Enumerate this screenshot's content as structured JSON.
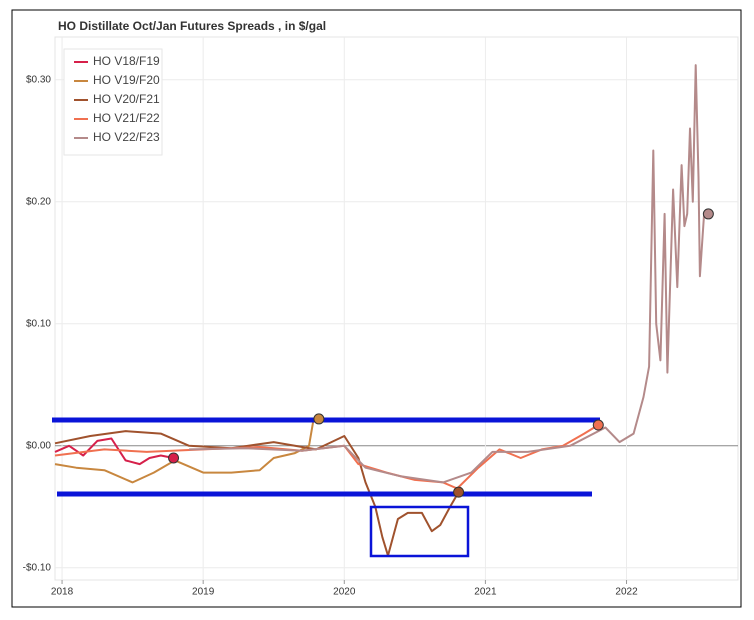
{
  "chart_data": {
    "type": "line",
    "title": "HO Distillate Oct/Jan Futures Spreads , in $/gal",
    "xlim": [
      2017.95,
      2022.79
    ],
    "xticks": [
      2018,
      2019,
      2020,
      2021,
      2022
    ],
    "ylim": [
      -0.11,
      0.335
    ],
    "yticks": [
      {
        "value": -0.1,
        "label": "-$0.10"
      },
      {
        "value": 0,
        "label": "$0.00"
      },
      {
        "value": 0.1,
        "label": "$0.10"
      },
      {
        "value": 0.2,
        "label": "$0.20"
      },
      {
        "value": 0.3,
        "label": "$0.30"
      }
    ],
    "grid": true,
    "legend": "top-left",
    "series": [
      {
        "name": "HO V18/F19",
        "color": "#d6204a",
        "x": [
          2017.95,
          2018.05,
          2018.15,
          2018.25,
          2018.35,
          2018.45,
          2018.55,
          2018.62,
          2018.7,
          2018.79
        ],
        "values": [
          -0.005,
          0.0,
          -0.008,
          0.004,
          0.006,
          -0.012,
          -0.015,
          -0.01,
          -0.008,
          -0.01
        ]
      },
      {
        "name": "HO V19/F20",
        "color": "#c8873f",
        "x": [
          2017.95,
          2018.1,
          2018.3,
          2018.5,
          2018.65,
          2018.8,
          2019.0,
          2019.2,
          2019.4,
          2019.5,
          2019.65,
          2019.75,
          2019.78,
          2019.82
        ],
        "values": [
          -0.015,
          -0.018,
          -0.02,
          -0.03,
          -0.022,
          -0.012,
          -0.022,
          -0.022,
          -0.02,
          -0.01,
          -0.006,
          0.0,
          0.02,
          0.022
        ]
      },
      {
        "name": "HO V20/F21",
        "color": "#a0522d",
        "x": [
          2017.95,
          2018.2,
          2018.45,
          2018.7,
          2018.9,
          2019.2,
          2019.5,
          2019.8,
          2020.0,
          2020.1,
          2020.15,
          2020.22,
          2020.27,
          2020.31,
          2020.38,
          2020.45,
          2020.55,
          2020.62,
          2020.68,
          2020.75,
          2020.81
        ],
        "values": [
          0.002,
          0.008,
          0.012,
          0.01,
          0.0,
          -0.002,
          0.003,
          -0.003,
          0.008,
          -0.01,
          -0.03,
          -0.05,
          -0.075,
          -0.09,
          -0.06,
          -0.055,
          -0.055,
          -0.07,
          -0.065,
          -0.05,
          -0.038
        ]
      },
      {
        "name": "HO V21/F22",
        "color": "#f07050",
        "x": [
          2017.95,
          2018.3,
          2018.6,
          2019.0,
          2019.4,
          2019.7,
          2020.0,
          2020.1,
          2020.3,
          2020.5,
          2020.7,
          2020.8,
          2020.95,
          2021.1,
          2021.25,
          2021.4,
          2021.55,
          2021.7,
          2021.8
        ],
        "values": [
          -0.008,
          -0.003,
          -0.005,
          -0.003,
          -0.001,
          -0.004,
          0.0,
          -0.015,
          -0.022,
          -0.028,
          -0.03,
          -0.035,
          -0.018,
          -0.003,
          -0.01,
          -0.003,
          0.0,
          0.01,
          0.017
        ]
      },
      {
        "name": "HO V22/F23",
        "color": "#b48a8a",
        "x": [
          2018.9,
          2019.3,
          2019.7,
          2020.0,
          2020.15,
          2020.4,
          2020.7,
          2020.9,
          2021.05,
          2021.3,
          2021.6,
          2021.85,
          2021.95,
          2022.05,
          2022.12,
          2022.16,
          2022.19,
          2022.21,
          2022.24,
          2022.27,
          2022.29,
          2022.33,
          2022.36,
          2022.39,
          2022.41,
          2022.43,
          2022.45,
          2022.47,
          2022.49,
          2022.51,
          2022.52,
          2022.55,
          2022.58
        ],
        "values": [
          -0.003,
          -0.002,
          -0.004,
          0.0,
          -0.018,
          -0.025,
          -0.03,
          -0.022,
          -0.005,
          -0.005,
          0.0,
          0.015,
          0.003,
          0.01,
          0.04,
          0.065,
          0.242,
          0.1,
          0.07,
          0.19,
          0.06,
          0.21,
          0.13,
          0.23,
          0.18,
          0.19,
          0.26,
          0.2,
          0.312,
          0.22,
          0.139,
          0.19,
          0.19
        ]
      }
    ]
  }
}
